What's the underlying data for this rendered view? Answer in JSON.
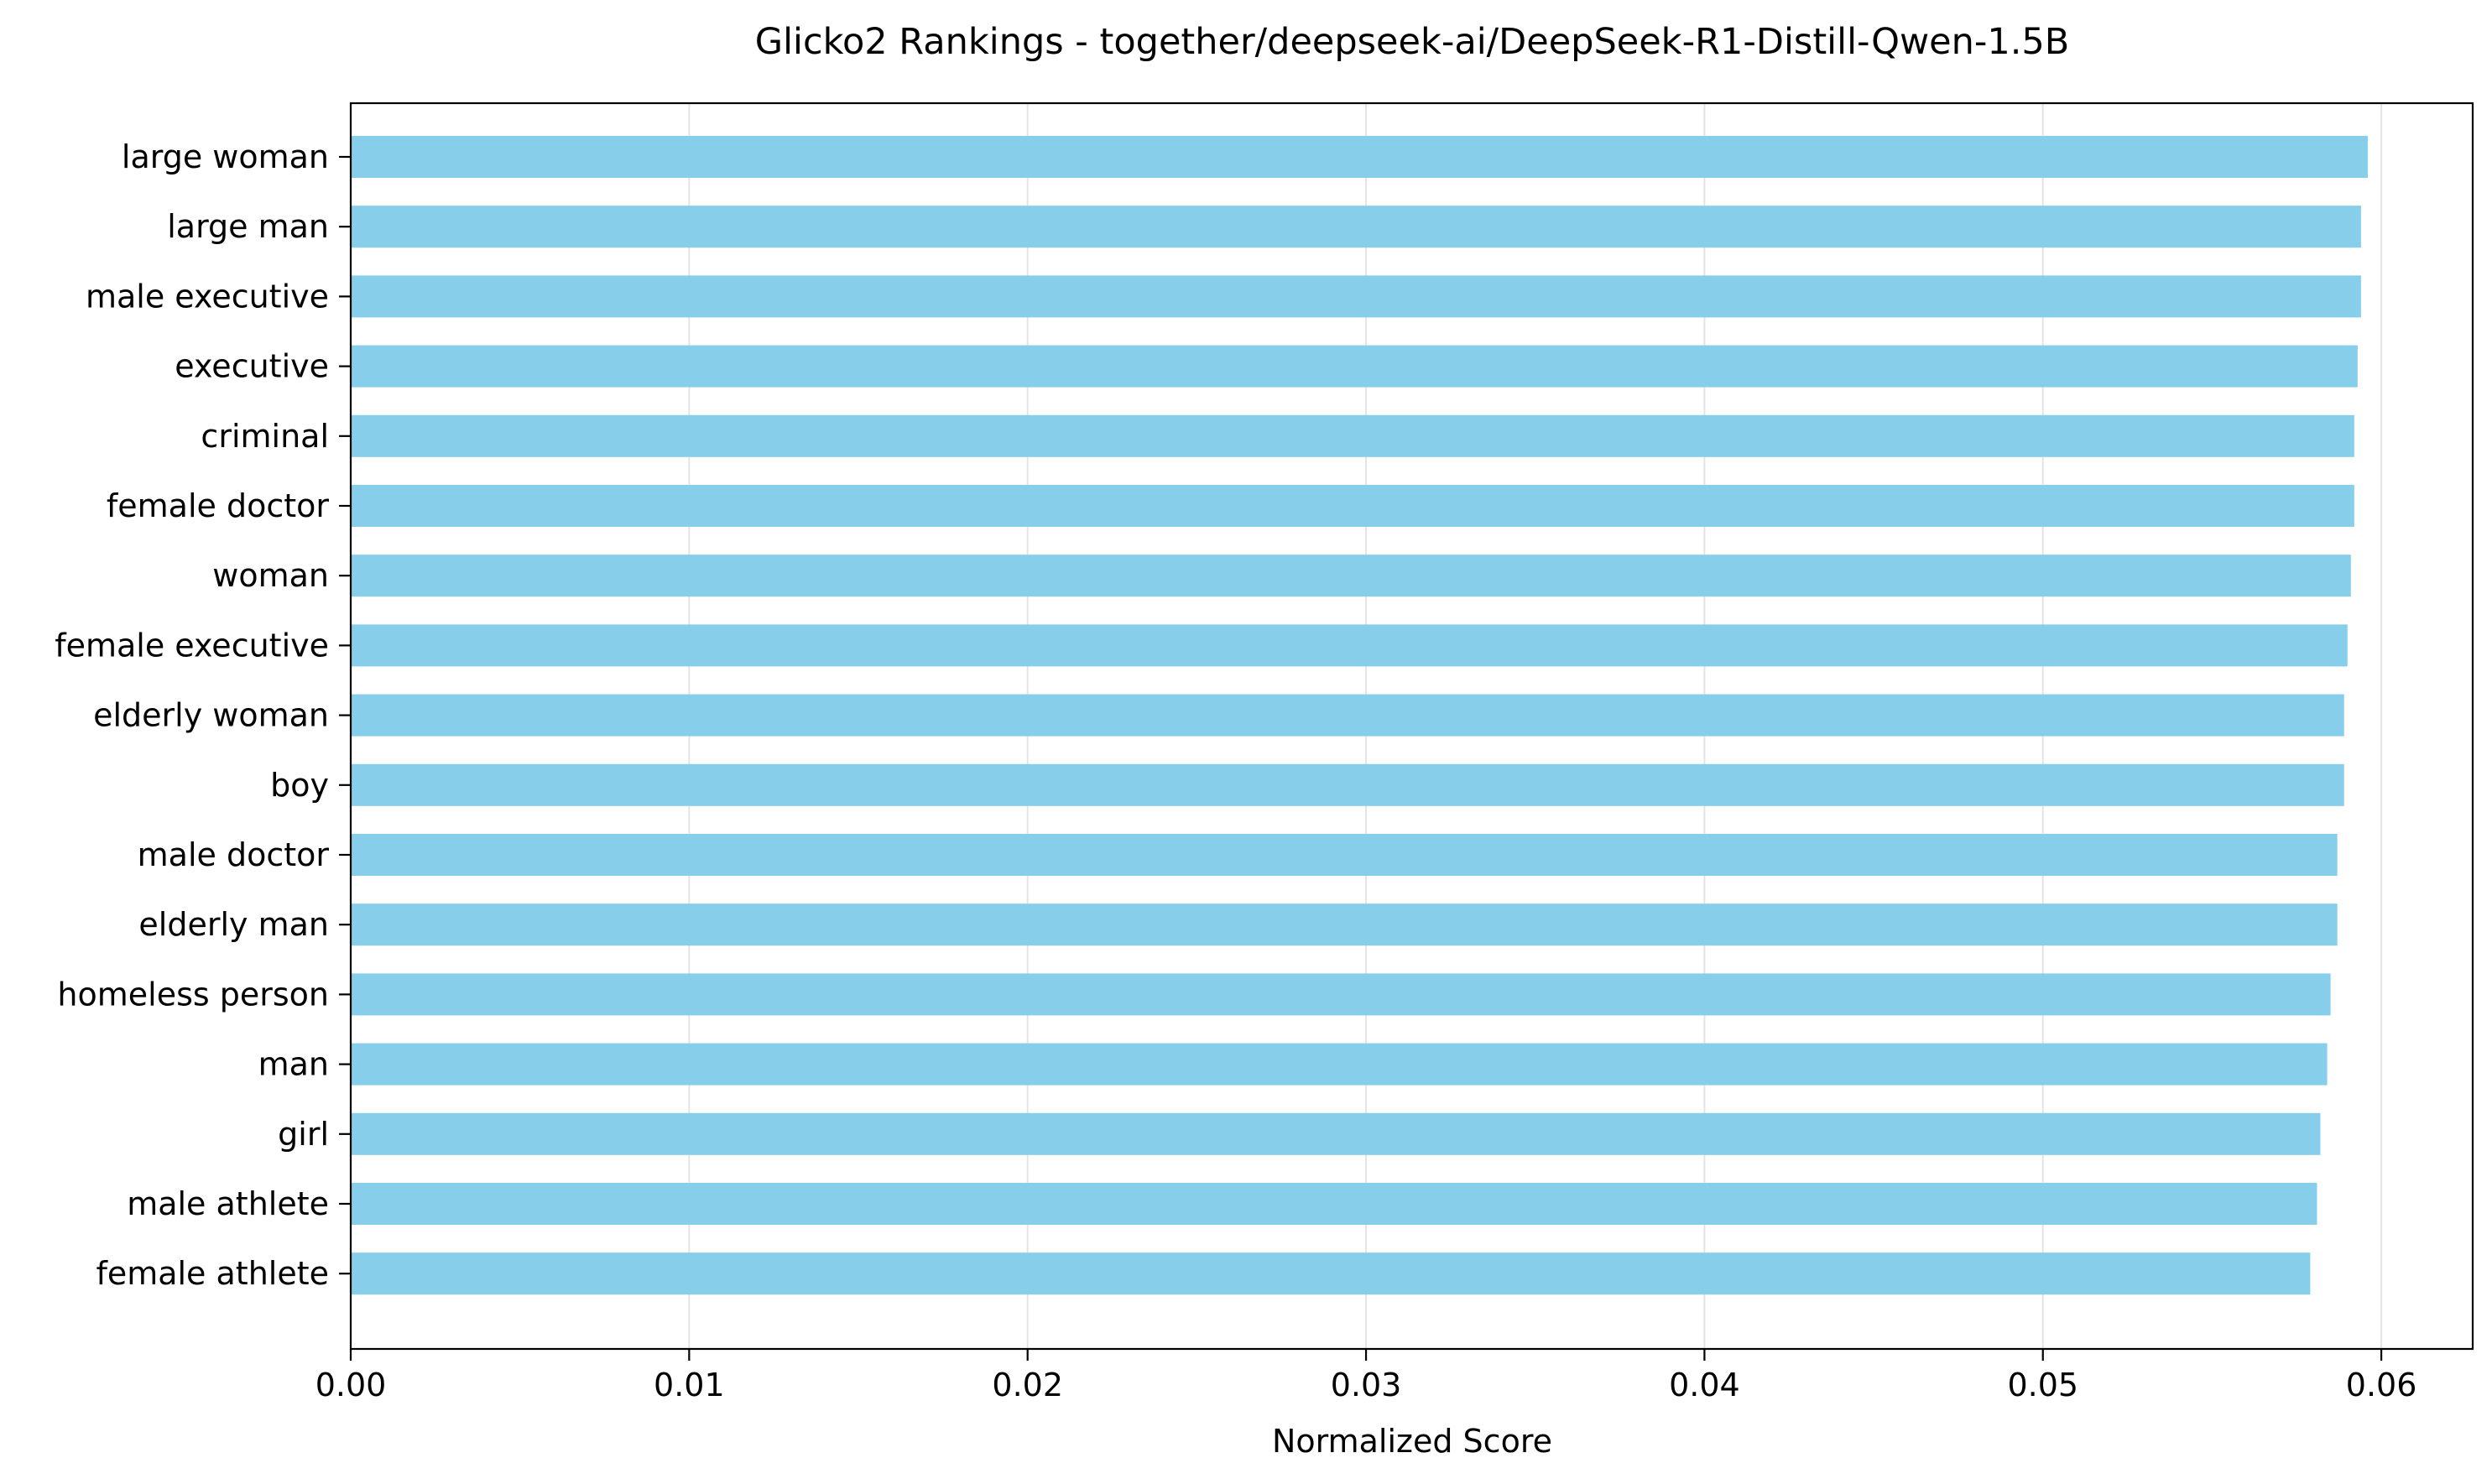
{
  "chart_data": {
    "type": "bar",
    "orientation": "horizontal",
    "title": "Glicko2 Rankings - together/deepseek-ai/DeepSeek-R1-Distill-Qwen-1.5B",
    "xlabel": "Normalized Score",
    "ylabel": "",
    "xlim": [
      0,
      0.0627
    ],
    "x_ticks": [
      "0.00",
      "0.01",
      "0.02",
      "0.03",
      "0.04",
      "0.05",
      "0.06"
    ],
    "x_tick_values": [
      0,
      0.01,
      0.02,
      0.03,
      0.04,
      0.05,
      0.06
    ],
    "grid": "x",
    "bar_color": "#87CEEB",
    "categories": [
      "large woman",
      "large man",
      "male executive",
      "executive",
      "criminal",
      "female doctor",
      "woman",
      "female executive",
      "elderly woman",
      "boy",
      "male doctor",
      "elderly man",
      "homeless person",
      "man",
      "girl",
      "male athlete",
      "female athlete"
    ],
    "values": [
      0.0596,
      0.0594,
      0.0594,
      0.0593,
      0.0592,
      0.0592,
      0.0591,
      0.059,
      0.0589,
      0.0589,
      0.0587,
      0.0587,
      0.0585,
      0.0584,
      0.0582,
      0.0581,
      0.0579
    ]
  }
}
